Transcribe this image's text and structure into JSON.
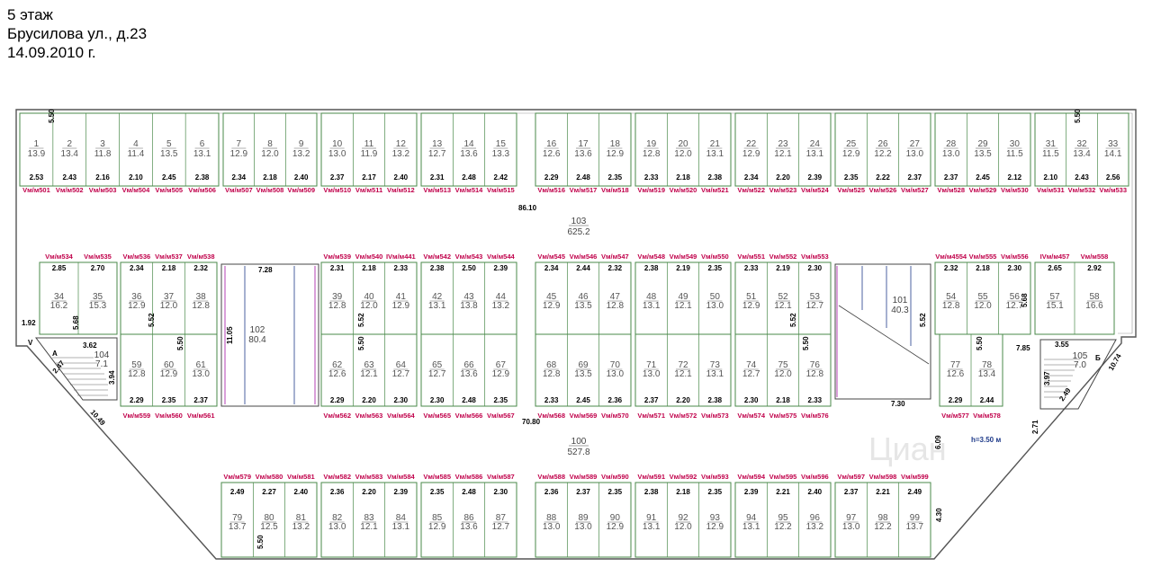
{
  "header": {
    "floor": "5 этаж",
    "address": "Брусилова ул., д.23",
    "date": "14.09.2010 г."
  },
  "top_row": [
    {
      "num": "1",
      "area": "13.9",
      "w": "2.53",
      "code": "Vм/м501"
    },
    {
      "num": "2",
      "area": "13.4",
      "w": "2.43",
      "code": "Vм/м502"
    },
    {
      "num": "3",
      "area": "11.8",
      "w": "2.16",
      "code": "Vм/м503"
    },
    {
      "num": "4",
      "area": "11.4",
      "w": "2.10",
      "code": "Vм/м504"
    },
    {
      "num": "5",
      "area": "13.5",
      "w": "2.45",
      "code": "Vм/м505"
    },
    {
      "num": "6",
      "area": "13.1",
      "w": "2.38",
      "code": "Vм/м506"
    },
    {
      "num": "7",
      "area": "12.9",
      "w": "2.34",
      "code": "Vм/м507"
    },
    {
      "num": "8",
      "area": "12.0",
      "w": "2.18",
      "code": "Vм/м508"
    },
    {
      "num": "9",
      "area": "13.2",
      "w": "2.40",
      "code": "Vм/м509"
    },
    {
      "num": "10",
      "area": "13.0",
      "w": "2.37",
      "code": "Vм/м510"
    },
    {
      "num": "11",
      "area": "11.9",
      "w": "2.17",
      "code": "Vм/м511"
    },
    {
      "num": "12",
      "area": "13.2",
      "w": "2.40",
      "code": "Vм/м512"
    },
    {
      "num": "13",
      "area": "12.7",
      "w": "2.31",
      "code": "Vм/м513"
    },
    {
      "num": "14",
      "area": "13.6",
      "w": "2.48",
      "code": "Vм/м514"
    },
    {
      "num": "15",
      "area": "13.3",
      "w": "2.42",
      "code": "Vм/м515"
    },
    {
      "num": "16",
      "area": "12.6",
      "w": "2.29",
      "code": "Vм/м516"
    },
    {
      "num": "17",
      "area": "13.6",
      "w": "2.48",
      "code": "Vм/м517"
    },
    {
      "num": "18",
      "area": "12.9",
      "w": "2.35",
      "code": "Vм/м518"
    },
    {
      "num": "19",
      "area": "12.8",
      "w": "2.33",
      "code": "Vм/м519"
    },
    {
      "num": "20",
      "area": "12.0",
      "w": "2.18",
      "code": "Vм/м520"
    },
    {
      "num": "21",
      "area": "13.1",
      "w": "2.38",
      "code": "Vм/м521"
    },
    {
      "num": "22",
      "area": "12.9",
      "w": "2.34",
      "code": "Vм/м522"
    },
    {
      "num": "23",
      "area": "12.1",
      "w": "2.20",
      "code": "Vм/м523"
    },
    {
      "num": "24",
      "area": "13.1",
      "w": "2.39",
      "code": "Vм/м524"
    },
    {
      "num": "25",
      "area": "12.9",
      "w": "2.35",
      "code": "Vм/м525"
    },
    {
      "num": "26",
      "area": "12.2",
      "w": "2.22",
      "code": "Vм/м526"
    },
    {
      "num": "27",
      "area": "13.0",
      "w": "2.37",
      "code": "Vм/м527"
    },
    {
      "num": "28",
      "area": "13.0",
      "w": "2.37",
      "code": "Vм/м528"
    },
    {
      "num": "29",
      "area": "13.5",
      "w": "2.45",
      "code": "Vм/м529"
    },
    {
      "num": "30",
      "area": "11.5",
      "w": "2.12",
      "code": "Vм/м530"
    },
    {
      "num": "31",
      "area": "11.5",
      "w": "2.10",
      "code": "Vм/м531"
    },
    {
      "num": "32",
      "area": "13.4",
      "w": "2.43",
      "code": "Vм/м532"
    },
    {
      "num": "33",
      "area": "14.1",
      "w": "2.56",
      "code": "Vм/м533"
    }
  ],
  "mid_upper_row": [
    {
      "num": "34",
      "area": "16.2",
      "w": "2.85",
      "code": "Vм/м534"
    },
    {
      "num": "35",
      "area": "15.3",
      "w": "2.70",
      "code": "Vм/м535"
    },
    {
      "num": "36",
      "area": "12.9",
      "w": "2.34",
      "code": "Vм/м536"
    },
    {
      "num": "37",
      "area": "12.0",
      "w": "2.18",
      "code": "Vм/м537"
    },
    {
      "num": "38",
      "area": "12.8",
      "w": "2.32",
      "code": "Vм/м538"
    },
    {
      "num": "39",
      "area": "12.8",
      "w": "2.31",
      "code": "Vм/м539"
    },
    {
      "num": "40",
      "area": "12.0",
      "w": "2.18",
      "code": "Vм/м540"
    },
    {
      "num": "41",
      "area": "12.9",
      "w": "2.33",
      "code": "IVм/м441"
    },
    {
      "num": "42",
      "area": "13.1",
      "w": "2.38",
      "code": "Vм/м542"
    },
    {
      "num": "43",
      "area": "13.8",
      "w": "2.50",
      "code": "Vм/м543"
    },
    {
      "num": "44",
      "area": "13.2",
      "w": "2.39",
      "code": "Vм/м544"
    },
    {
      "num": "45",
      "area": "12.9",
      "w": "2.34",
      "code": "Vм/м545"
    },
    {
      "num": "46",
      "area": "13.5",
      "w": "2.44",
      "code": "Vм/м546"
    },
    {
      "num": "47",
      "area": "12.8",
      "w": "2.32",
      "code": "Vм/м547"
    },
    {
      "num": "48",
      "area": "13.1",
      "w": "2.38",
      "code": "Vм/м548"
    },
    {
      "num": "49",
      "area": "12.1",
      "w": "2.19",
      "code": "Vм/м549"
    },
    {
      "num": "50",
      "area": "13.0",
      "w": "2.35",
      "code": "Vм/м550"
    },
    {
      "num": "51",
      "area": "12.9",
      "w": "2.33",
      "code": "Vм/м551"
    },
    {
      "num": "52",
      "area": "12.1",
      "w": "2.19",
      "code": "Vм/м552"
    },
    {
      "num": "53",
      "area": "12.7",
      "w": "2.30",
      "code": "Vм/м553"
    },
    {
      "num": "54",
      "area": "12.8",
      "w": "2.32",
      "code": "Vм/м4554"
    },
    {
      "num": "55",
      "area": "12.0",
      "w": "2.18",
      "code": "Vм/м555"
    },
    {
      "num": "56",
      "area": "12.7",
      "w": "2.30",
      "code": "Vм/м556"
    },
    {
      "num": "57",
      "area": "15.1",
      "w": "2.65",
      "code": "IVм/м457"
    },
    {
      "num": "58",
      "area": "16.6",
      "w": "2.92",
      "code": "Vм/м558"
    }
  ],
  "mid_lower_row": [
    {
      "num": "59",
      "area": "12.8",
      "w": "2.29",
      "code": "Vм/м559"
    },
    {
      "num": "60",
      "area": "12.9",
      "w": "2.35",
      "code": "Vм/м560"
    },
    {
      "num": "61",
      "area": "13.0",
      "w": "2.37",
      "code": "Vм/м561"
    },
    {
      "num": "62",
      "area": "12.6",
      "w": "2.29",
      "code": "Vм/м562"
    },
    {
      "num": "63",
      "area": "12.1",
      "w": "2.20",
      "code": "Vм/м563"
    },
    {
      "num": "64",
      "area": "12.7",
      "w": "2.30",
      "code": "Vм/м564"
    },
    {
      "num": "65",
      "area": "12.7",
      "w": "2.30",
      "code": "Vм/м565"
    },
    {
      "num": "66",
      "area": "13.6",
      "w": "2.48",
      "code": "Vм/м566"
    },
    {
      "num": "67",
      "area": "12.9",
      "w": "2.35",
      "code": "Vм/м567"
    },
    {
      "num": "68",
      "area": "12.8",
      "w": "2.33",
      "code": "Vм/м568"
    },
    {
      "num": "69",
      "area": "13.5",
      "w": "2.45",
      "code": "Vм/м569"
    },
    {
      "num": "70",
      "area": "13.0",
      "w": "2.36",
      "code": "Vм/м570"
    },
    {
      "num": "71",
      "area": "13.0",
      "w": "2.37",
      "code": "Vм/м571"
    },
    {
      "num": "72",
      "area": "12.1",
      "w": "2.20",
      "code": "Vм/м572"
    },
    {
      "num": "73",
      "area": "13.1",
      "w": "2.38",
      "code": "Vм/м573"
    },
    {
      "num": "74",
      "area": "12.7",
      "w": "2.30",
      "code": "Vм/м574"
    },
    {
      "num": "75",
      "area": "12.0",
      "w": "2.18",
      "code": "Vм/м575"
    },
    {
      "num": "76",
      "area": "12.8",
      "w": "2.33",
      "code": "Vм/м576"
    },
    {
      "num": "77",
      "area": "12.6",
      "w": "2.29",
      "code": "Vм/м577"
    },
    {
      "num": "78",
      "area": "13.4",
      "w": "2.44",
      "code": "Vм/м578"
    }
  ],
  "bottom_row": [
    {
      "num": "79",
      "area": "13.7",
      "w": "2.49",
      "code": "Vм/м579"
    },
    {
      "num": "80",
      "area": "12.5",
      "w": "2.27",
      "code": "Vм/м580"
    },
    {
      "num": "81",
      "area": "13.2",
      "w": "2.40",
      "code": "Vм/м581"
    },
    {
      "num": "82",
      "area": "13.0",
      "w": "2.36",
      "code": "Vм/м582"
    },
    {
      "num": "83",
      "area": "12.1",
      "w": "2.20",
      "code": "Vм/м583"
    },
    {
      "num": "84",
      "area": "13.1",
      "w": "2.39",
      "code": "Vм/м584"
    },
    {
      "num": "85",
      "area": "12.9",
      "w": "2.35",
      "code": "Vм/м585"
    },
    {
      "num": "86",
      "area": "13.6",
      "w": "2.48",
      "code": "Vм/м586"
    },
    {
      "num": "87",
      "area": "12.7",
      "w": "2.30",
      "code": "Vм/м587"
    },
    {
      "num": "88",
      "area": "13.0",
      "w": "2.36",
      "code": "Vм/м588"
    },
    {
      "num": "89",
      "area": "13.0",
      "w": "2.37",
      "code": "Vм/м589"
    },
    {
      "num": "90",
      "area": "12.9",
      "w": "2.35",
      "code": "Vм/м590"
    },
    {
      "num": "91",
      "area": "13.1",
      "w": "2.38",
      "code": "Vм/м591"
    },
    {
      "num": "92",
      "area": "12.0",
      "w": "2.18",
      "code": "Vм/м592"
    },
    {
      "num": "93",
      "area": "12.9",
      "w": "2.35",
      "code": "Vм/м593"
    },
    {
      "num": "94",
      "area": "13.1",
      "w": "2.39",
      "code": "Vм/м594"
    },
    {
      "num": "95",
      "area": "12.2",
      "w": "2.21",
      "code": "Vм/м595"
    },
    {
      "num": "96",
      "area": "13.2",
      "w": "2.40",
      "code": "Vм/м596"
    },
    {
      "num": "97",
      "area": "13.0",
      "w": "2.37",
      "code": "Vм/м597"
    },
    {
      "num": "98",
      "area": "12.2",
      "w": "2.21",
      "code": "Vм/м598"
    },
    {
      "num": "99",
      "area": "13.7",
      "w": "2.49",
      "code": "Vм/м599"
    }
  ],
  "rooms": {
    "r100": {
      "num": "100",
      "area": "527.8"
    },
    "r101": {
      "num": "101",
      "area": "40.3"
    },
    "r102": {
      "num": "102",
      "area": "80.4"
    },
    "r103": {
      "num": "103",
      "area": "625.2"
    },
    "r104": {
      "num": "104",
      "area": "7.1"
    },
    "r105": {
      "num": "105",
      "area": "7.0"
    }
  },
  "dimensions": {
    "d_550_top": "5.50",
    "d_550_right_top": "5.50",
    "d_8610": "86.10",
    "d_728": "7.28",
    "d_1105": "11.05",
    "d_192": "1.92",
    "d_568_a": "5.68",
    "d_552_a": "5.52",
    "d_550_a": "5.50",
    "d_552_b": "5.52",
    "d_550_b": "5.50",
    "d_552_c": "5.52",
    "d_550_c": "5.50",
    "d_552_d": "5.52",
    "d_568_b": "5.68",
    "d_550_d": "5.50",
    "d_362": "3.62",
    "d_394": "3.94",
    "d_247": "2.47",
    "d_1049": "10.49",
    "d_355": "3.55",
    "d_397": "3.97",
    "d_1074": "10.74",
    "d_249": "2.49",
    "d_785": "7.85",
    "d_730": "7.30",
    "d_7080": "70.80",
    "d_609": "6.09",
    "d_271": "2.71",
    "d_430": "4.30",
    "d_550_bottom": "5.50"
  },
  "labels": {
    "stair_a": "А",
    "stair_b": "Б",
    "v_mark": "V",
    "height_note": "h=3.50 м",
    "watermark": "Циан"
  }
}
